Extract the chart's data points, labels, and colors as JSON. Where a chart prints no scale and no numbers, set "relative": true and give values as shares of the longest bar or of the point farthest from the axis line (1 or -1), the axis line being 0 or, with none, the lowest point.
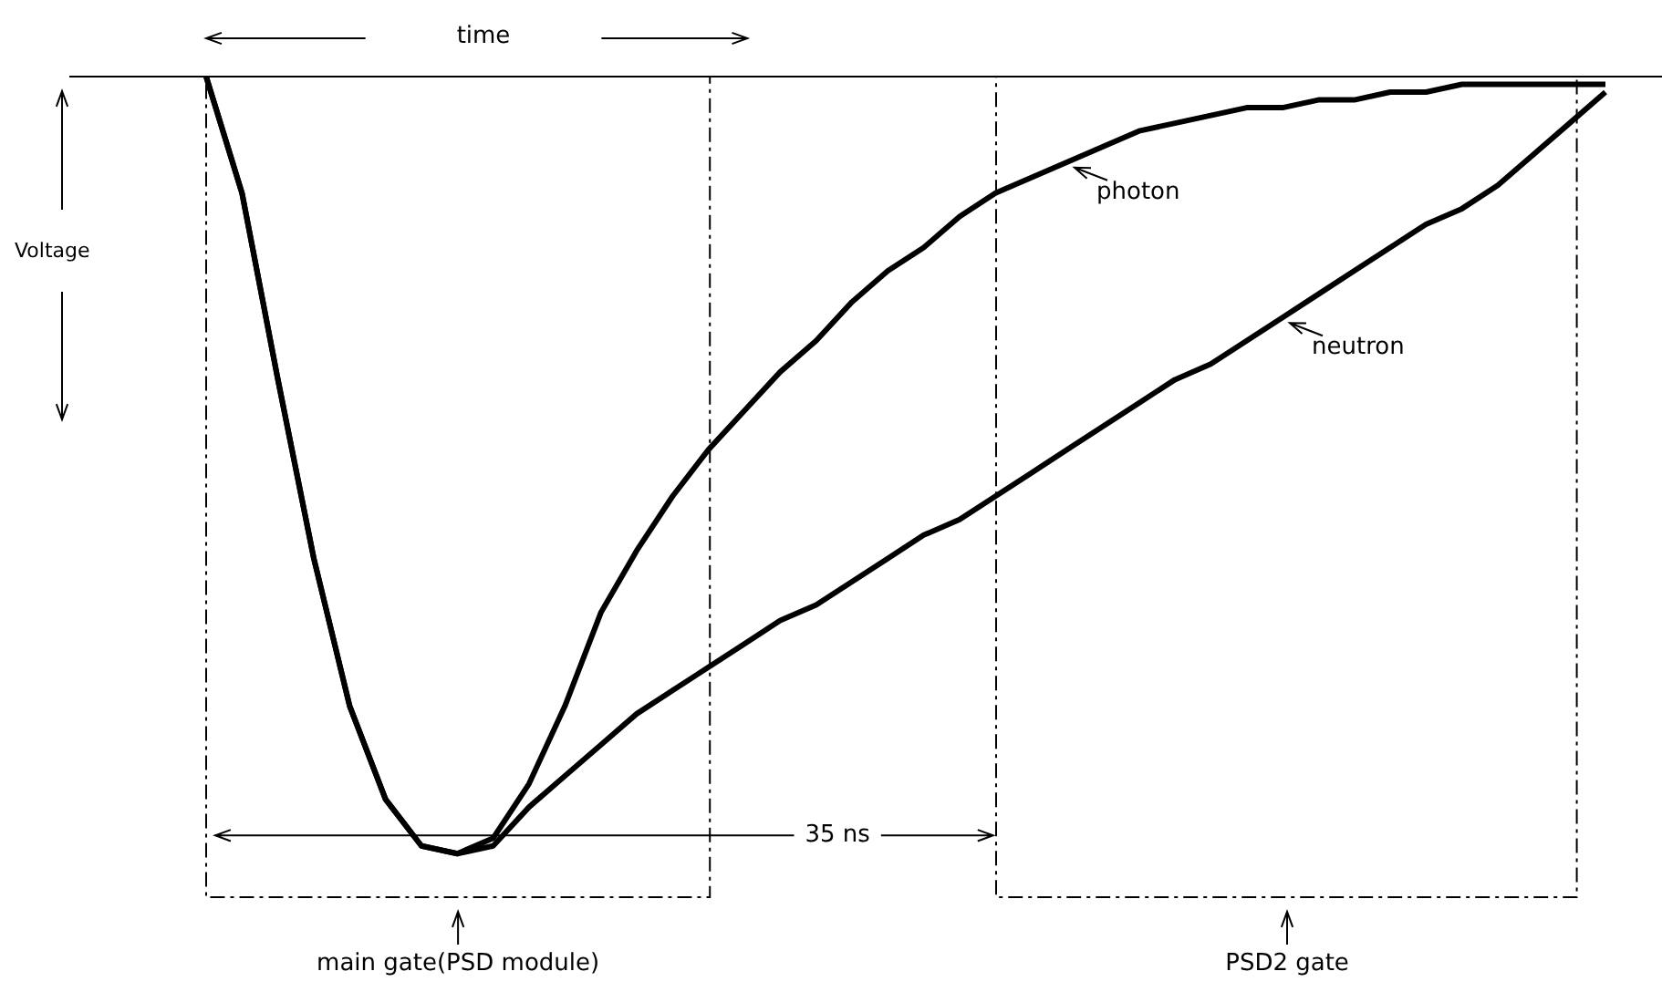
{
  "chart_data": {
    "type": "line",
    "relative": true,
    "xlabel": "time",
    "ylabel": "Voltage",
    "categories": [
      null,
      null,
      null,
      null,
      null,
      null,
      null,
      null,
      null,
      null,
      null,
      null,
      null,
      null,
      null,
      null,
      null,
      null,
      null,
      null,
      null,
      null,
      null,
      null,
      null,
      null,
      null,
      null,
      null,
      null,
      null,
      null,
      null,
      null,
      null,
      null,
      null,
      null,
      null,
      null
    ],
    "series": [
      {
        "name": "photon",
        "color": "#000000",
        "values": [
          0,
          -0.15,
          -0.39,
          -0.62,
          -0.81,
          -0.93,
          -0.99,
          -1,
          -0.98,
          -0.91,
          -0.81,
          -0.69,
          -0.61,
          -0.54,
          -0.48,
          -0.43,
          -0.38,
          -0.34,
          -0.29,
          -0.25,
          -0.22,
          -0.18,
          -0.15,
          -0.13,
          -0.11,
          -0.09,
          -0.07,
          -0.06,
          -0.05,
          -0.04,
          -0.04,
          -0.03,
          -0.03,
          -0.02,
          -0.02,
          -0.01,
          -0.01,
          -0.01,
          -0.01,
          -0.01
        ]
      },
      {
        "name": "neutron",
        "color": "#000000",
        "values": [
          0,
          -0.15,
          -0.39,
          -0.62,
          -0.81,
          -0.93,
          -0.99,
          -1,
          -0.99,
          -0.94,
          -0.9,
          -0.86,
          -0.82,
          -0.79,
          -0.76,
          -0.73,
          -0.7,
          -0.68,
          -0.65,
          -0.62,
          -0.59,
          -0.57,
          -0.54,
          -0.51,
          -0.48,
          -0.45,
          -0.42,
          -0.39,
          -0.37,
          -0.34,
          -0.31,
          -0.28,
          -0.25,
          -0.22,
          -0.19,
          -0.17,
          -0.14,
          -0.1,
          -0.06,
          -0.02
        ]
      }
    ],
    "annotations": [
      "35 ns",
      "main gate(PSD module)",
      "PSD2 gate"
    ],
    "legend": "top right",
    "marker": "none",
    "line_style": "solid"
  }
}
